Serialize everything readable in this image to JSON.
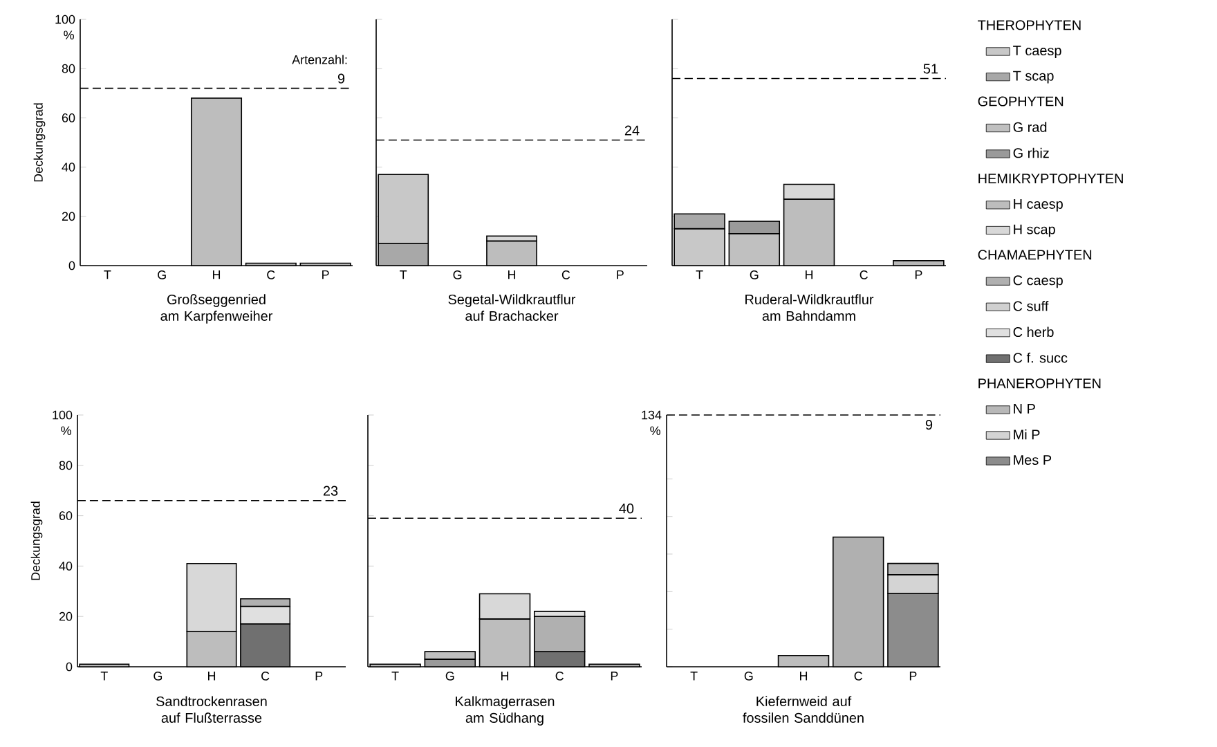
{
  "chart_data": [
    {
      "type": "bar",
      "stacked": true,
      "title": "Großseggenried am Karpfenweiher",
      "ylabel": "Deckungsgrad",
      "categories": [
        "T",
        "G",
        "H",
        "C",
        "P"
      ],
      "ylim": [
        0,
        100
      ],
      "yticks": [
        0,
        20,
        40,
        60,
        80,
        100
      ],
      "series": [
        {
          "color": "#bdbdbd",
          "values": [
            null,
            null,
            68,
            null,
            null
          ]
        },
        {
          "color": "#b0b0b0",
          "values": [
            null,
            null,
            null,
            1,
            null
          ]
        },
        {
          "color": "#b8b8b8",
          "values": [
            null,
            null,
            null,
            null,
            1
          ]
        }
      ],
      "ref_lines": [
        {
          "axis": "y",
          "value": 72,
          "line_style": "dashed"
        }
      ],
      "annotations": [
        "%",
        "Artenzahl:",
        {
          "text": "9",
          "x": "P",
          "y": 72
        }
      ]
    },
    {
      "type": "bar",
      "stacked": true,
      "title": "Segetal-Wildkrautflur auf Brachacker",
      "categories": [
        "T",
        "G",
        "H",
        "C",
        "P"
      ],
      "ylim": [
        0,
        100
      ],
      "yticks": [
        0,
        20,
        40,
        60,
        80,
        100
      ],
      "tick_labels": "x",
      "series": [
        {
          "color": "#a8a8a8",
          "values": [
            9,
            null,
            null,
            null,
            null
          ]
        },
        {
          "color": "#c8c8c8",
          "values": [
            28,
            null,
            null,
            null,
            null
          ]
        },
        {
          "color": "#bdbdbd",
          "values": [
            null,
            null,
            10,
            null,
            null
          ]
        },
        {
          "color": "#d8d8d8",
          "values": [
            null,
            null,
            2,
            null,
            null
          ]
        }
      ],
      "ref_lines": [
        {
          "axis": "y",
          "value": 51,
          "line_style": "dashed"
        }
      ],
      "annotations": [
        {
          "text": "24",
          "x": "P",
          "y": 51
        }
      ]
    },
    {
      "type": "bar",
      "stacked": true,
      "title": "Ruderal-Wildkrautflur am Bahndamm",
      "categories": [
        "T",
        "G",
        "H",
        "C",
        "P"
      ],
      "ylim": [
        0,
        100
      ],
      "yticks": [
        0,
        20,
        40,
        60,
        80,
        100
      ],
      "tick_labels": "x",
      "legend": "right",
      "series": [
        {
          "name": "T caesp",
          "color": "#c8c8c8",
          "values": [
            15,
            null,
            null,
            null,
            null
          ]
        },
        {
          "name": "T scap",
          "color": "#a8a8a8",
          "values": [
            6,
            null,
            null,
            null,
            null
          ]
        },
        {
          "name": "G rad",
          "color": "#c0c0c0",
          "values": [
            null,
            13,
            null,
            null,
            null
          ]
        },
        {
          "name": "G rhiz",
          "color": "#9a9a9a",
          "values": [
            null,
            5,
            null,
            null,
            null
          ]
        },
        {
          "name": "H caesp",
          "color": "#bdbdbd",
          "values": [
            null,
            null,
            27,
            null,
            null
          ]
        },
        {
          "name": "H scap",
          "color": "#d8d8d8",
          "values": [
            null,
            null,
            6,
            null,
            null
          ]
        },
        {
          "name": "C caesp",
          "color": "#b0b0b0",
          "values": [
            null,
            null,
            null,
            null,
            null
          ]
        },
        {
          "name": "C suff",
          "color": "#d0d0d0",
          "values": [
            null,
            null,
            null,
            null,
            null
          ]
        },
        {
          "name": "C herb",
          "color": "#e0e0e0",
          "values": [
            null,
            null,
            null,
            null,
            null
          ]
        },
        {
          "name": "C f. succ",
          "color": "#707070",
          "values": [
            null,
            null,
            null,
            null,
            null
          ]
        },
        {
          "name": "N P",
          "color": "#b8b8b8",
          "values": [
            null,
            null,
            null,
            null,
            2
          ]
        },
        {
          "name": "Mi P",
          "color": "#d4d4d4",
          "values": [
            null,
            null,
            null,
            null,
            null
          ]
        },
        {
          "name": "Mes P",
          "color": "#8c8c8c",
          "values": [
            null,
            null,
            null,
            null,
            null
          ]
        }
      ],
      "ref_lines": [
        {
          "axis": "y",
          "value": 76,
          "line_style": "dashed"
        }
      ],
      "annotations": [
        "THEROPHYTEN",
        "GEOPHYTEN",
        "HEMIKRYPTOPHYTEN",
        "CHAMAEPHYTEN",
        "PHANEROPHYTEN",
        {
          "text": "51",
          "x": "P",
          "y": 76
        }
      ]
    },
    {
      "type": "bar",
      "stacked": true,
      "title": "Sandtrockenrasen auf Flußterrasse",
      "ylabel": "Deckungsgrad",
      "categories": [
        "T",
        "G",
        "H",
        "C",
        "P"
      ],
      "ylim": [
        0,
        100
      ],
      "yticks": [
        0,
        20,
        40,
        60,
        80,
        100
      ],
      "series": [
        {
          "color": "#c8c8c8",
          "values": [
            1,
            null,
            null,
            null,
            null
          ]
        },
        {
          "color": "#bdbdbd",
          "values": [
            null,
            null,
            14,
            null,
            null
          ]
        },
        {
          "color": "#d8d8d8",
          "values": [
            null,
            null,
            27,
            null,
            null
          ]
        },
        {
          "color": "#707070",
          "values": [
            null,
            null,
            null,
            17,
            null
          ]
        },
        {
          "color": "#e0e0e0",
          "values": [
            null,
            null,
            null,
            7,
            null
          ]
        },
        {
          "color": "#b0b0b0",
          "values": [
            null,
            null,
            null,
            3,
            null
          ]
        }
      ],
      "ref_lines": [
        {
          "axis": "y",
          "value": 66,
          "line_style": "dashed"
        }
      ],
      "annotations": [
        "%",
        {
          "text": "23",
          "x": "P",
          "y": 66
        }
      ]
    },
    {
      "type": "bar",
      "stacked": true,
      "title": "Kalkmagerrasen am Südhang",
      "categories": [
        "T",
        "G",
        "H",
        "C",
        "P"
      ],
      "ylim": [
        0,
        100
      ],
      "yticks": [
        0,
        20,
        40,
        60,
        80,
        100
      ],
      "tick_labels": "x",
      "series": [
        {
          "color": "#c8c8c8",
          "values": [
            1,
            null,
            null,
            null,
            null
          ]
        },
        {
          "color": "#9a9a9a",
          "values": [
            null,
            3,
            null,
            null,
            null
          ]
        },
        {
          "color": "#c0c0c0",
          "values": [
            null,
            3,
            null,
            null,
            null
          ]
        },
        {
          "color": "#bdbdbd",
          "values": [
            null,
            null,
            19,
            null,
            null
          ]
        },
        {
          "color": "#d8d8d8",
          "values": [
            null,
            null,
            10,
            null,
            null
          ]
        },
        {
          "color": "#707070",
          "values": [
            null,
            null,
            null,
            6,
            null
          ]
        },
        {
          "color": "#b0b0b0",
          "values": [
            null,
            null,
            null,
            14,
            null
          ]
        },
        {
          "color": "#e0e0e0",
          "values": [
            null,
            null,
            null,
            2,
            null
          ]
        },
        {
          "color": "#b8b8b8",
          "values": [
            null,
            null,
            null,
            null,
            1
          ]
        }
      ],
      "ref_lines": [
        {
          "axis": "y",
          "value": 59,
          "line_style": "dashed"
        }
      ],
      "annotations": [
        {
          "text": "40",
          "x": "P",
          "y": 59
        }
      ]
    },
    {
      "type": "bar",
      "stacked": true,
      "title": "Kiefernweid auf fossilen Sanddünen",
      "categories": [
        "T",
        "G",
        "H",
        "C",
        "P"
      ],
      "ylim": [
        0,
        134
      ],
      "yticks": [
        {
          "value": 0,
          "label": null
        },
        {
          "value": 20,
          "label": null
        },
        {
          "value": 40,
          "label": null
        },
        {
          "value": 60,
          "label": null
        },
        {
          "value": 80,
          "label": null
        },
        {
          "value": 100,
          "label": null
        },
        {
          "value": 134,
          "label": "134"
        }
      ],
      "series": [
        {
          "color": "#bdbdbd",
          "values": [
            null,
            null,
            6,
            null,
            null
          ]
        },
        {
          "color": "#b0b0b0",
          "values": [
            null,
            null,
            null,
            69,
            null
          ]
        },
        {
          "color": "#8c8c8c",
          "values": [
            null,
            null,
            null,
            null,
            39
          ]
        },
        {
          "color": "#d4d4d4",
          "values": [
            null,
            null,
            null,
            null,
            10
          ]
        },
        {
          "color": "#b8b8b8",
          "values": [
            null,
            null,
            null,
            null,
            6
          ]
        }
      ],
      "ref_lines": [
        {
          "axis": "y",
          "value": 134,
          "line_style": "dashed"
        }
      ],
      "annotations": [
        "%",
        {
          "text": "9",
          "x": "P",
          "y": 134
        }
      ]
    }
  ]
}
